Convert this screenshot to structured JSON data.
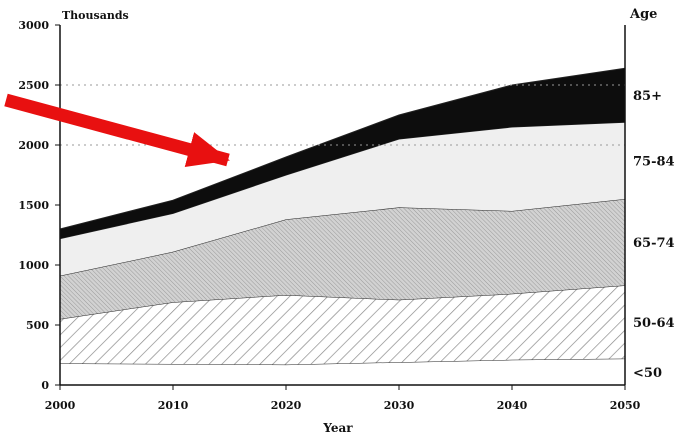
{
  "chart_data": {
    "type": "area",
    "stacked": true,
    "title": "",
    "xlabel": "Year",
    "ylabel": "Thousands",
    "right_axis_label": "Age",
    "x": [
      2000,
      2010,
      2020,
      2030,
      2040,
      2050
    ],
    "x_tick_labels": [
      "2000",
      "2010",
      "2020",
      "2030",
      "2040",
      "2050"
    ],
    "ylim": [
      0,
      3000
    ],
    "y_ticks": [
      0,
      500,
      1000,
      1500,
      2000,
      2500,
      3000
    ],
    "y_tick_labels": [
      "0",
      "500",
      "1000",
      "1500",
      "2000",
      "2500",
      "3000"
    ],
    "gridlines_dotted_at": [
      2000,
      2500
    ],
    "series": [
      {
        "name": "<50",
        "values": [
          180,
          175,
          170,
          190,
          210,
          220
        ],
        "fill": "plain-white"
      },
      {
        "name": "50-64",
        "values": [
          370,
          515,
          580,
          520,
          550,
          610
        ],
        "fill": "diagonal-hatch"
      },
      {
        "name": "65-74",
        "values": [
          360,
          420,
          630,
          770,
          690,
          720
        ],
        "fill": "dense-dot-gray"
      },
      {
        "name": "75-84",
        "values": [
          310,
          320,
          370,
          570,
          700,
          640
        ],
        "fill": "light-gray"
      },
      {
        "name": "85+",
        "values": [
          80,
          110,
          150,
          200,
          350,
          450
        ],
        "fill": "black"
      }
    ],
    "annotation": {
      "type": "arrow",
      "color": "#e81010"
    },
    "colors": {
      "axis": "#111111",
      "grid": "#999999",
      "black_band": "#0d0d0d",
      "light_band": "#efefef",
      "arrow": "#e81010"
    }
  }
}
